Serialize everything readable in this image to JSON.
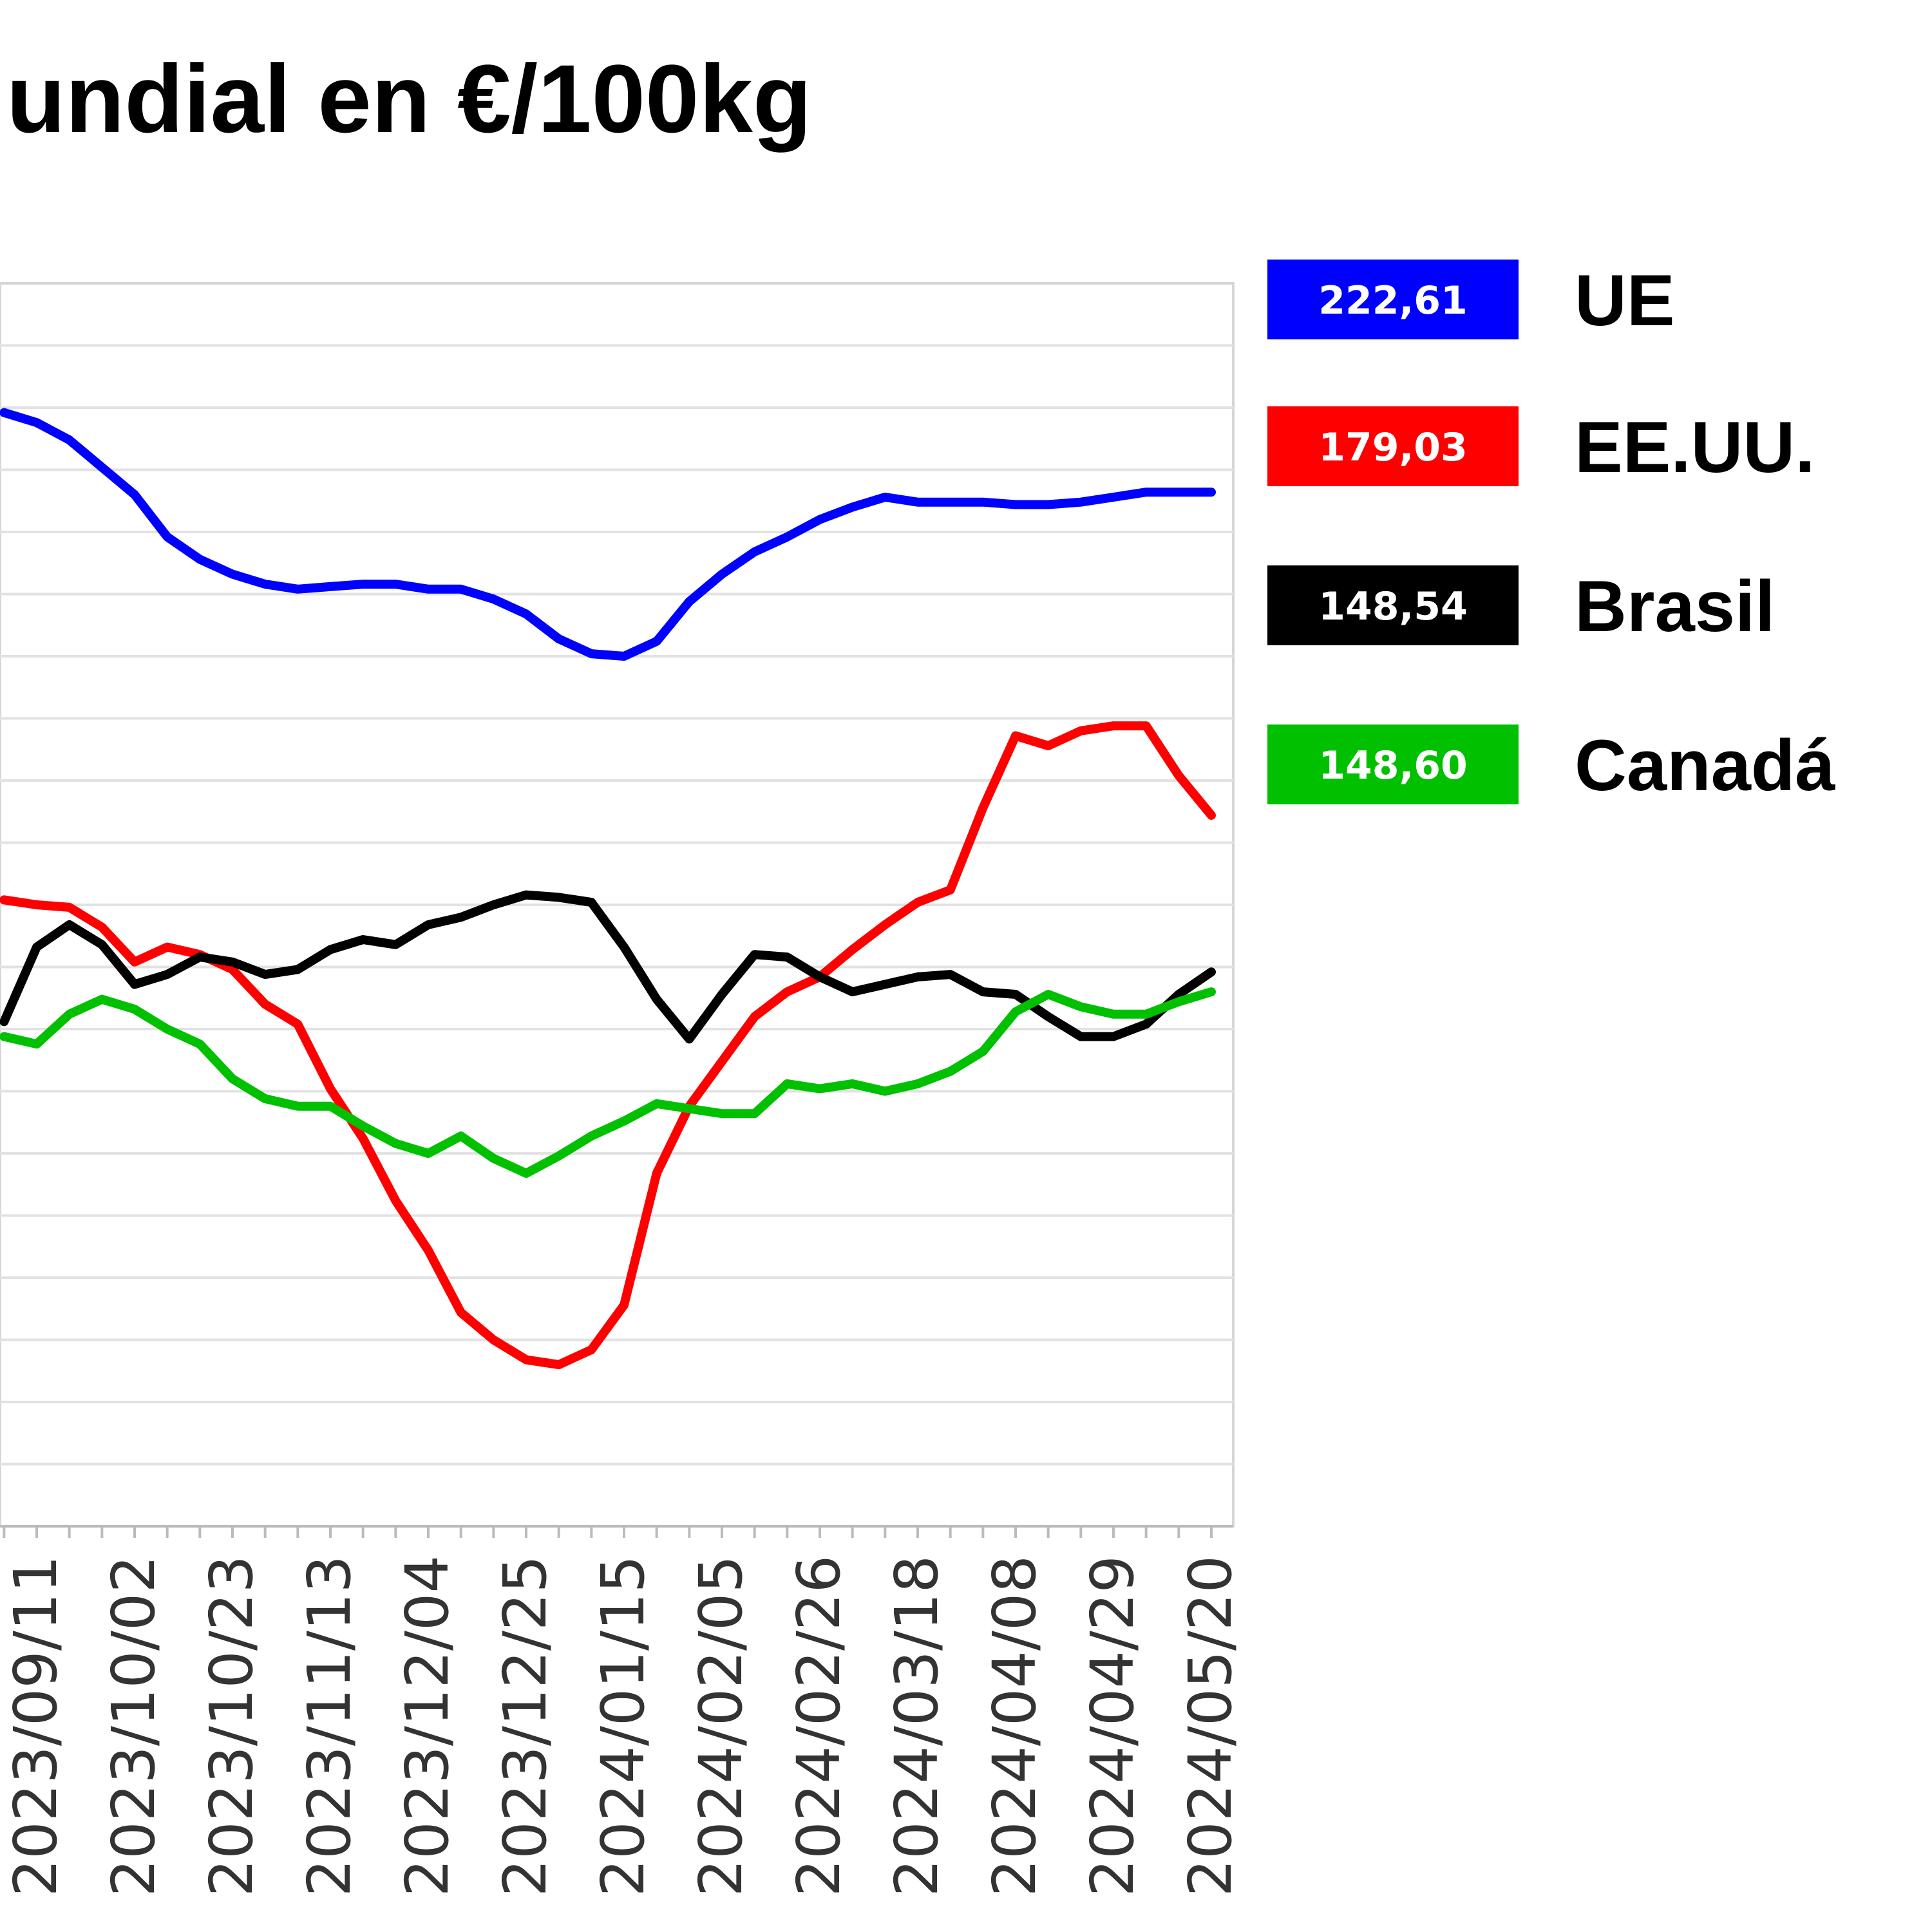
{
  "chart_data": {
    "type": "line",
    "title": "…undial en €/100kg",
    "xlabel": "",
    "ylabel": "",
    "grid": true,
    "legend_position": "right",
    "x_ticks": [
      "2023/09/11",
      "2023/10/02",
      "2023/10/23",
      "2023/11/13",
      "2023/12/04",
      "2023/12/25",
      "2024/01/15",
      "2024/02/05",
      "2024/02/26",
      "2024/03/18",
      "2024/04/08",
      "2024/04/29",
      "2024/05/20"
    ],
    "x": [
      "2023/09/04",
      "2023/09/11",
      "2023/09/18",
      "2023/09/25",
      "2023/10/02",
      "2023/10/09",
      "2023/10/16",
      "2023/10/23",
      "2023/10/30",
      "2023/11/06",
      "2023/11/13",
      "2023/11/20",
      "2023/11/27",
      "2023/12/04",
      "2023/12/11",
      "2023/12/18",
      "2023/12/25",
      "2024/01/01",
      "2024/01/08",
      "2024/01/15",
      "2024/01/22",
      "2024/01/29",
      "2024/02/05",
      "2024/02/12",
      "2024/02/19",
      "2024/02/26",
      "2024/03/04",
      "2024/03/11",
      "2024/03/18",
      "2024/03/25",
      "2024/04/01",
      "2024/04/08",
      "2024/04/15",
      "2024/04/22",
      "2024/04/29",
      "2024/05/06",
      "2024/05/13",
      "2024/05/20"
    ],
    "series": [
      {
        "name": "UE",
        "label": "222,61",
        "color": "#0000ff",
        "values": [
          224.8,
          224.4,
          223.7,
          222.6,
          221.5,
          219.8,
          218.9,
          218.3,
          217.9,
          217.7,
          217.8,
          217.9,
          217.9,
          217.7,
          217.7,
          217.3,
          216.7,
          215.7,
          215.1,
          215.0,
          215.6,
          217.2,
          218.3,
          219.2,
          219.8,
          220.5,
          221.0,
          221.4,
          221.2,
          221.2,
          221.2,
          221.1,
          221.1,
          221.2,
          221.4,
          221.6,
          221.6,
          221.6
        ]
      },
      {
        "name": "EE.UU.",
        "label": "179,03",
        "color": "#ff0000",
        "values": [
          205.2,
          205.0,
          204.9,
          204.1,
          202.7,
          203.3,
          203.0,
          202.4,
          201.0,
          200.2,
          197.6,
          195.6,
          193.1,
          191.1,
          188.6,
          187.5,
          186.7,
          186.5,
          187.1,
          188.9,
          194.2,
          196.9,
          198.7,
          200.5,
          201.5,
          202.1,
          203.2,
          204.2,
          205.1,
          205.6,
          208.9,
          211.8,
          211.4,
          212.0,
          212.2,
          212.2,
          210.2,
          208.6
        ]
      },
      {
        "name": "Brasil",
        "label": "148,54",
        "color": "#000000",
        "values": [
          200.3,
          203.3,
          204.2,
          203.4,
          201.8,
          202.2,
          202.9,
          202.7,
          202.2,
          202.4,
          203.2,
          203.6,
          203.4,
          204.2,
          204.5,
          205.0,
          205.4,
          205.3,
          205.1,
          203.3,
          201.2,
          199.6,
          201.4,
          203.0,
          202.9,
          202.1,
          201.5,
          201.8,
          202.1,
          202.2,
          201.5,
          201.4,
          200.5,
          199.7,
          199.7,
          200.2,
          201.4,
          202.3
        ]
      },
      {
        "name": "Canadá",
        "label": "148,60",
        "color": "#00c000",
        "values": [
          199.7,
          199.4,
          200.6,
          201.2,
          200.8,
          200.0,
          199.4,
          198.0,
          197.2,
          196.9,
          196.9,
          196.1,
          195.4,
          195.0,
          195.7,
          194.8,
          194.2,
          194.9,
          195.7,
          196.3,
          197.0,
          196.8,
          196.6,
          196.6,
          197.8,
          197.6,
          197.8,
          197.5,
          197.8,
          198.3,
          199.1,
          200.7,
          201.4,
          200.9,
          200.6,
          200.6,
          201.1,
          201.5
        ]
      }
    ]
  }
}
